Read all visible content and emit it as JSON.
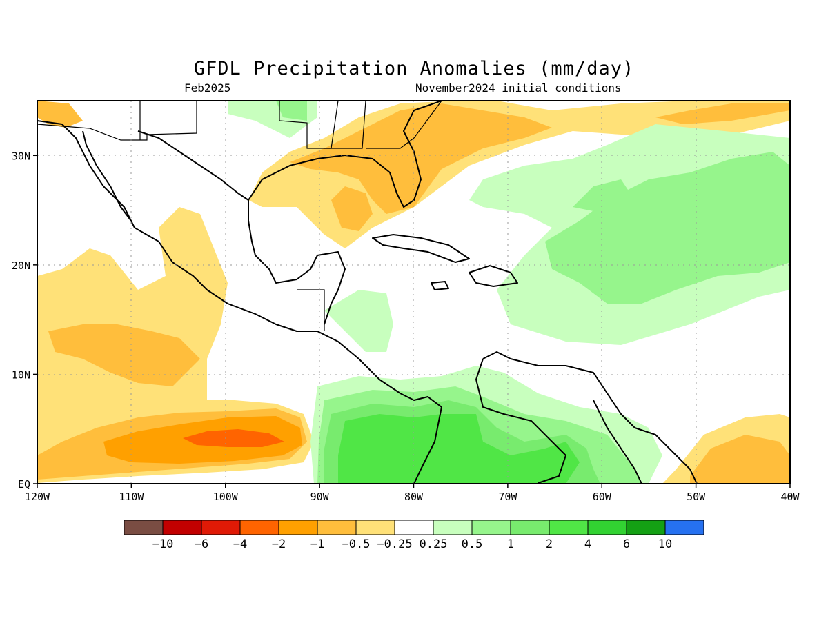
{
  "title": "GFDL Precipitation Anomalies (mm/day)",
  "subtitle_left": "Feb2025",
  "subtitle_right": "November2024 initial conditions",
  "axes": {
    "x_ticks": [
      "120W",
      "110W",
      "100W",
      "90W",
      "80W",
      "70W",
      "60W",
      "50W",
      "40W"
    ],
    "y_ticks": [
      "EQ",
      "10N",
      "20N",
      "30N"
    ]
  },
  "colorbar": {
    "colors": [
      "#7a4d43",
      "#c20000",
      "#e01a06",
      "#ff6400",
      "#ffa000",
      "#ffbe3c",
      "#ffe178",
      "#ffffff",
      "#c8ffbe",
      "#96f58c",
      "#78eb6e",
      "#50e646",
      "#32d232",
      "#14a014",
      "#2671f0"
    ],
    "labels": [
      "−10",
      "−6",
      "−4",
      "−2",
      "−1",
      "−0.5",
      "−0.25",
      "0.25",
      "0.5",
      "1",
      "2",
      "4",
      "6",
      "10"
    ]
  },
  "chart_data": {
    "type": "heatmap",
    "title": "GFDL Precipitation Anomalies (mm/day)",
    "valid_month": "Feb2025",
    "initial_conditions": "November2024 initial conditions",
    "lon_range": [
      -120,
      -40
    ],
    "lat_range": [
      0,
      35
    ],
    "units": "mm/day",
    "levels": [
      -10,
      -6,
      -4,
      -2,
      -1,
      -0.5,
      -0.25,
      0.25,
      0.5,
      1,
      2,
      4,
      6,
      10
    ],
    "grid": true
  }
}
